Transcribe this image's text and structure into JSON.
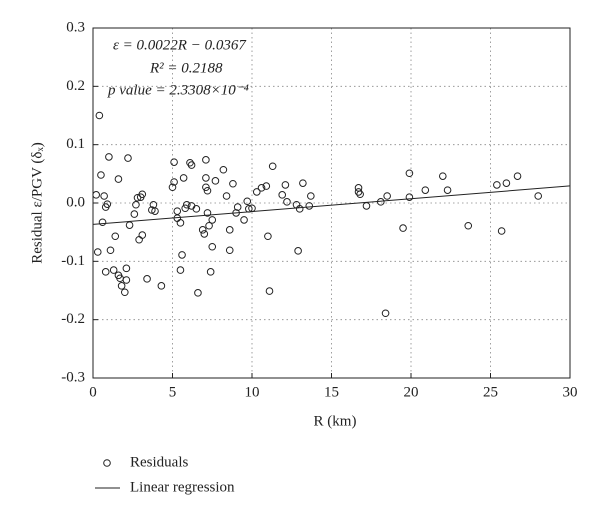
{
  "chart_data": {
    "type": "scatter",
    "xlabel": "R (km)",
    "ylabel": "Residual ε/PGV (δₓ)",
    "annotations": [
      "ε = 0.0022R − 0.0367",
      "R² = 0.2188",
      "p value = 2.3308×10⁻⁴"
    ],
    "xlim": [
      0,
      30
    ],
    "ylim": [
      -0.3,
      0.3
    ],
    "xticks": [
      0,
      5,
      10,
      15,
      20,
      25,
      30
    ],
    "yticks": [
      0.3,
      0.2,
      0.1,
      {
        "value": 0,
        "label": "0.0"
      },
      -0.1,
      -0.2,
      -0.3
    ],
    "grid": true,
    "series": [
      {
        "name": "Residuals",
        "style": "marker",
        "color": "#222222",
        "x": [
          0.2,
          0.4,
          0.3,
          0.5,
          0.6,
          0.7,
          0.8,
          0.8,
          0.9,
          1.0,
          1.1,
          1.3,
          1.4,
          1.6,
          1.6,
          1.7,
          1.8,
          2.0,
          2.1,
          2.2,
          2.1,
          2.3,
          2.6,
          2.7,
          2.8,
          3.0,
          3.1,
          2.9,
          3.1,
          3.4,
          3.7,
          3.9,
          3.8,
          4.3,
          5.0,
          5.1,
          5.1,
          5.3,
          5.3,
          5.5,
          5.5,
          5.6,
          5.7,
          5.8,
          5.9,
          6.1,
          6.2,
          6.2,
          6.5,
          6.6,
          6.9,
          7.0,
          7.1,
          7.1,
          7.1,
          7.2,
          7.2,
          7.3,
          7.4,
          7.5,
          7.5,
          7.7,
          8.2,
          8.4,
          8.6,
          8.6,
          8.8,
          9.0,
          9.1,
          9.5,
          9.7,
          9.8,
          10.0,
          10.3,
          10.6,
          10.9,
          11.0,
          11.1,
          11.3,
          11.9,
          12.1,
          12.2,
          12.8,
          12.9,
          13.0,
          13.2,
          13.6,
          13.7,
          16.7,
          16.7,
          16.8,
          17.2,
          18.1,
          18.4,
          18.5,
          19.5,
          19.9,
          19.9,
          20.9,
          22.0,
          22.3,
          23.6,
          25.4,
          25.7,
          26.0,
          26.7,
          28.0
        ],
        "values": [
          0.014,
          0.15,
          -0.084,
          0.048,
          -0.033,
          0.012,
          -0.118,
          -0.007,
          -0.002,
          0.079,
          -0.081,
          -0.115,
          -0.057,
          0.041,
          -0.124,
          -0.129,
          -0.142,
          -0.153,
          -0.132,
          0.077,
          -0.112,
          -0.038,
          -0.019,
          -0.003,
          0.009,
          0.01,
          0.015,
          -0.063,
          -0.055,
          -0.13,
          -0.012,
          -0.014,
          -0.003,
          -0.142,
          0.027,
          0.07,
          0.036,
          -0.014,
          -0.026,
          -0.034,
          -0.115,
          -0.089,
          0.043,
          -0.009,
          -0.003,
          0.069,
          0.065,
          -0.005,
          -0.01,
          -0.154,
          -0.046,
          -0.053,
          0.074,
          0.043,
          0.027,
          0.021,
          -0.017,
          -0.039,
          -0.118,
          -0.075,
          -0.029,
          0.038,
          0.057,
          0.012,
          -0.046,
          -0.081,
          0.033,
          -0.017,
          -0.007,
          -0.029,
          0.003,
          -0.01,
          -0.009,
          0.019,
          0.026,
          0.029,
          -0.057,
          -0.151,
          0.063,
          0.014,
          0.031,
          0.002,
          -0.003,
          -0.082,
          -0.01,
          0.034,
          -0.005,
          0.012,
          0.026,
          0.019,
          0.015,
          -0.005,
          0.002,
          -0.189,
          0.012,
          -0.043,
          0.051,
          0.01,
          0.022,
          0.046,
          0.022,
          -0.039,
          0.031,
          -0.048,
          0.034,
          0.046,
          0.012
        ]
      },
      {
        "name": "Linear regression",
        "style": "line",
        "color": "#222222",
        "x": [
          0,
          30
        ],
        "values": [
          -0.0367,
          0.0293
        ]
      }
    ]
  }
}
